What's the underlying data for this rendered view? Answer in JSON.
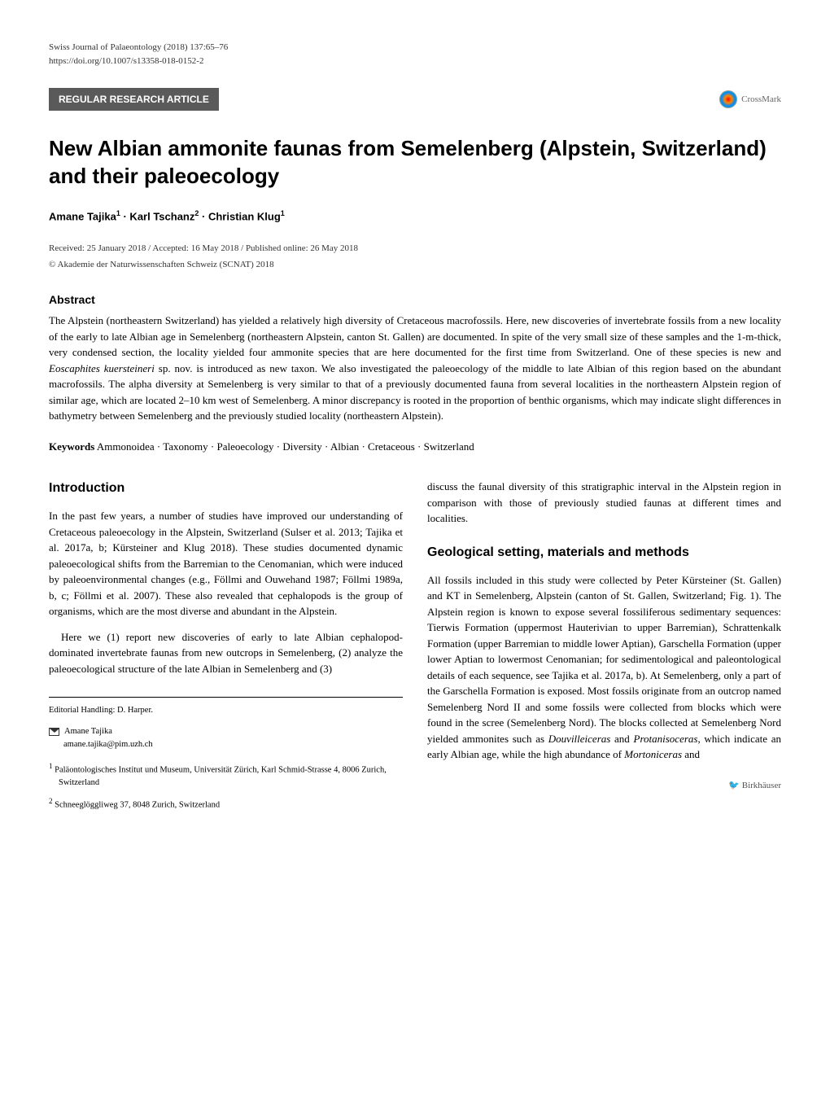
{
  "journal": {
    "name": "Swiss Journal of Palaeontology (2018) 137:65–76",
    "doi": "https://doi.org/10.1007/s13358-018-0152-2"
  },
  "article_type": "REGULAR RESEARCH ARTICLE",
  "crossmark_label": "CrossMark",
  "title": "New Albian ammonite faunas from Semelenberg (Alpstein, Switzerland) and their paleoecology",
  "authors_html": "Amane Tajika<sup>1</sup> · Karl Tschanz<sup>2</sup> · Christian Klug<sup>1</sup>",
  "dates": "Received: 25 January 2018 / Accepted: 16 May 2018 / Published online: 26 May 2018",
  "copyright": "© Akademie der Naturwissenschaften Schweiz (SCNAT) 2018",
  "abstract": {
    "heading": "Abstract",
    "text": "The Alpstein (northeastern Switzerland) has yielded a relatively high diversity of Cretaceous macrofossils. Here, new discoveries of invertebrate fossils from a new locality of the early to late Albian age in Semelenberg (northeastern Alpstein, canton St. Gallen) are documented. In spite of the very small size of these samples and the 1-m-thick, very condensed section, the locality yielded four ammonite species that are here documented for the first time from Switzerland. One of these species is new and Eoscaphites kuersteineri sp. nov. is introduced as new taxon. We also investigated the paleoecology of the middle to late Albian of this region based on the abundant macrofossils. The alpha diversity at Semelenberg is very similar to that of a previously documented fauna from several localities in the northeastern Alpstein region of similar age, which are located 2–10 km west of Semelenberg. A minor discrepancy is rooted in the proportion of benthic organisms, which may indicate slight differences in bathymetry between Semelenberg and the previously studied locality (northeastern Alpstein)."
  },
  "keywords": {
    "label": "Keywords",
    "text": "Ammonoidea · Taxonomy · Paleoecology · Diversity · Albian · Cretaceous · Switzerland"
  },
  "sections": {
    "introduction": {
      "heading": "Introduction",
      "p1": "In the past few years, a number of studies have improved our understanding of Cretaceous paleoecology in the Alpstein, Switzerland (Sulser et al. 2013; Tajika et al. 2017a, b; Kürsteiner and Klug 2018). These studies documented dynamic paleoecological shifts from the Barremian to the Cenomanian, which were induced by paleoenvironmental changes (e.g., Föllmi and Ouwehand 1987; Föllmi 1989a, b, c; Föllmi et al. 2007). These also revealed that cephalopods is the group of organisms, which are the most diverse and abundant in the Alpstein.",
      "p2": "Here we (1) report new discoveries of early to late Albian cephalopod-dominated invertebrate faunas from new outcrops in Semelenberg, (2) analyze the paleoecological structure of the late Albian in Semelenberg and (3)",
      "p3": "discuss the faunal diversity of this stratigraphic interval in the Alpstein region in comparison with those of previously studied faunas at different times and localities."
    },
    "geological": {
      "heading": "Geological setting, materials and methods",
      "p1": "All fossils included in this study were collected by Peter Kürsteiner (St. Gallen) and KT in Semelenberg, Alpstein (canton of St. Gallen, Switzerland; Fig. 1). The Alpstein region is known to expose several fossiliferous sedimentary sequences: Tierwis Formation (uppermost Hauterivian to upper Barremian), Schrattenkalk Formation (upper Barremian to middle lower Aptian), Garschella Formation (upper lower Aptian to lowermost Cenomanian; for sedimentological and paleontological details of each sequence, see Tajika et al. 2017a, b). At Semelenberg, only a part of the Garschella Formation is exposed. Most fossils originate from an outcrop named Semelenberg Nord II and some fossils were collected from blocks which were found in the scree (Semelenberg Nord). The blocks collected at Semelenberg Nord yielded ammonites such as Douvilleiceras and Protanisoceras, which indicate an early Albian age, while the high abundance of Mortoniceras and"
    }
  },
  "footer": {
    "editorial": "Editorial Handling: D. Harper.",
    "corresponding_name": "Amane Tajika",
    "corresponding_email": "amane.tajika@pim.uzh.ch",
    "affiliations": [
      {
        "num": "1",
        "text": "Paläontologisches Institut und Museum, Universität Zürich, Karl Schmid-Strasse 4, 8006 Zurich, Switzerland"
      },
      {
        "num": "2",
        "text": "Schneeglöggliweg 37, 8048 Zurich, Switzerland"
      }
    ]
  },
  "publisher": "Birkhäuser"
}
